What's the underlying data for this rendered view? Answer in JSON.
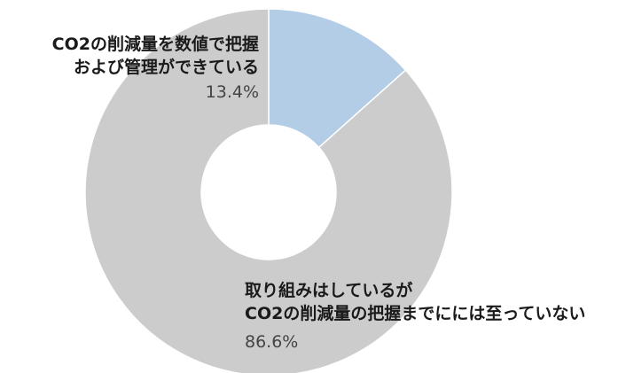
{
  "chart_data": {
    "type": "pie",
    "donut": true,
    "slices": [
      {
        "label_lines": [
          "CO2の削減量を数値で把握",
          "および管理ができている"
        ],
        "value": 13.4,
        "value_label": "13.4%",
        "color": "#b4cde6"
      },
      {
        "label_lines": [
          "取り組みはしているが",
          "CO2の削減量の把握までにには至っていない"
        ],
        "value": 86.6,
        "value_label": "86.6%",
        "color": "#cccccc"
      }
    ],
    "legend": "none"
  }
}
